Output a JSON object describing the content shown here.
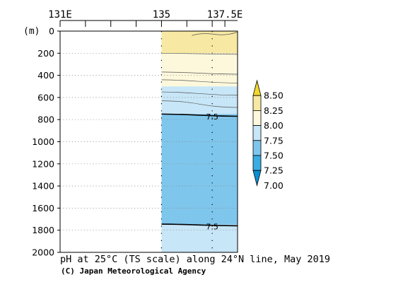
{
  "chart_data": {
    "type": "heatmap",
    "title": "pH at 25°C (TS scale) along 24°N line, May 2019",
    "credit": "(C) Japan Meteorological Agency",
    "x_axis": {
      "unit_label": "",
      "range_deg_e": [
        131,
        138
      ],
      "tick_labels": [
        {
          "value": 131,
          "label": "131E"
        },
        {
          "value": 135,
          "label": "135"
        },
        {
          "value": 137.5,
          "label": "137.5E"
        }
      ],
      "minor_ticks": [
        132,
        133,
        134,
        136,
        137
      ]
    },
    "y_axis": {
      "unit_label": "(m)",
      "range": [
        0,
        2000
      ],
      "reversed": true,
      "tick_labels": [
        "0",
        "200",
        "400",
        "600",
        "800",
        "1000",
        "1200",
        "1400",
        "1600",
        "1800",
        "2000"
      ],
      "tick_values": [
        0,
        200,
        400,
        600,
        800,
        1000,
        1200,
        1400,
        1600,
        1800,
        2000
      ]
    },
    "data_region_lon": [
      135,
      138
    ],
    "station_lon": [
      135,
      137
    ],
    "layers": [
      {
        "class": "8.00-8.25",
        "top": 0,
        "bottom": 200,
        "color": "#f7e9a3"
      },
      {
        "class": "7.75-8.00",
        "top": 200,
        "bottom": 500,
        "color": "#fdf8dc"
      },
      {
        "class": "7.50-7.75",
        "top": 500,
        "bottom": 750,
        "color": "#c7e6f7"
      },
      {
        "class": "7.25-7.50",
        "top": 750,
        "bottom": 1750,
        "color": "#7fc6ec"
      },
      {
        "class": "7.50-7.75",
        "top": 1750,
        "bottom": 2000,
        "color": "#c7e6f7"
      }
    ],
    "contours": [
      {
        "level": 8.05,
        "depth_left": 200,
        "depth_right": 210,
        "bold": false,
        "labeled": false
      },
      {
        "level": 7.95,
        "depth_left": 370,
        "depth_right": 390,
        "bold": false,
        "labeled": false
      },
      {
        "level": 7.85,
        "depth_left": 440,
        "depth_right": 470,
        "bold": false,
        "labeled": false
      },
      {
        "level": 7.75,
        "depth_left": 550,
        "depth_right": 580,
        "bold": false,
        "labeled": false
      },
      {
        "level": 7.65,
        "depth_left": 630,
        "depth_right": 690,
        "bold": false,
        "labeled": false
      },
      {
        "level": 7.5,
        "depth_left": 750,
        "depth_right": 770,
        "bold": true,
        "labeled": true,
        "label": "7.5",
        "label_lon": 137
      },
      {
        "level": 7.5,
        "depth_left": 1745,
        "depth_right": 1760,
        "bold": true,
        "labeled": true,
        "label": "7.5",
        "label_lon": 137
      }
    ],
    "legend": {
      "orientation": "vertical",
      "placement": "right",
      "bins": [
        {
          "range": "above 8.25",
          "color": "#f2d82c"
        },
        {
          "range": "8.00-8.25",
          "color": "#f7e9a3"
        },
        {
          "range": "7.75-8.00",
          "color": "#fdf8dc"
        },
        {
          "range": "7.50-7.75",
          "color": "#c7e6f7"
        },
        {
          "range": "7.25-7.50",
          "color": "#7fc6ec"
        },
        {
          "range": "7.00-7.25",
          "color": "#38aee3"
        },
        {
          "range": "below 7.00",
          "color": "#0a91d3"
        }
      ],
      "labels": [
        "8.50",
        "8.25",
        "8.00",
        "7.75",
        "7.50",
        "7.25",
        "7.00"
      ]
    }
  }
}
